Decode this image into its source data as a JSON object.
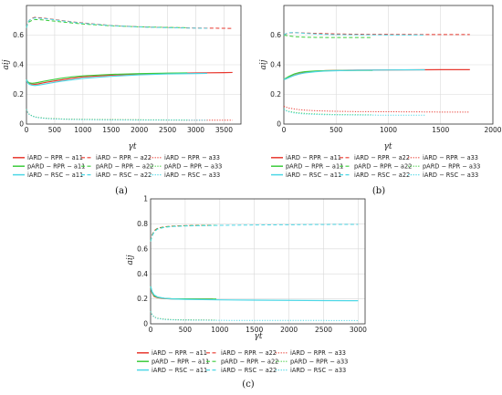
{
  "chart_data": [
    {
      "type": "line",
      "panel_label": "(a)",
      "xlabel": "γt",
      "ylabel": "aij",
      "xlim": [
        0,
        3800
      ],
      "ylim": [
        0,
        0.8
      ],
      "xticks": [
        0,
        500,
        1000,
        1500,
        2000,
        2500,
        3000,
        3500
      ],
      "yticks": [
        0,
        0.2,
        0.4,
        0.6
      ],
      "grid": true,
      "legend_position": "below",
      "series": [
        {
          "name": "iARD − RPR − a11",
          "color": "#e8382f",
          "dash": "solid",
          "x": [
            0,
            20,
            50,
            100,
            150,
            200,
            300,
            400,
            600,
            800,
            1000,
            1500,
            2000,
            2500,
            3000,
            3500,
            3650
          ],
          "y": [
            0.3,
            0.285,
            0.275,
            0.27,
            0.268,
            0.27,
            0.278,
            0.285,
            0.297,
            0.308,
            0.318,
            0.33,
            0.337,
            0.342,
            0.345,
            0.347,
            0.348
          ]
        },
        {
          "name": "iARD − RPR − a22",
          "color": "#e8382f",
          "dash": "dashed",
          "x": [
            0,
            20,
            50,
            100,
            150,
            200,
            300,
            400,
            600,
            800,
            1000,
            1500,
            2000,
            2500,
            3000,
            3500,
            3650
          ],
          "y": [
            0.65,
            0.68,
            0.7,
            0.715,
            0.72,
            0.718,
            0.715,
            0.71,
            0.7,
            0.69,
            0.682,
            0.665,
            0.656,
            0.651,
            0.648,
            0.646,
            0.645
          ]
        },
        {
          "name": "iARD − RPR − a33",
          "color": "#e8382f",
          "dash": "dotted",
          "x": [
            0,
            20,
            50,
            100,
            150,
            200,
            300,
            400,
            600,
            800,
            1000,
            1500,
            2000,
            2500,
            3000,
            3500,
            3650
          ],
          "y": [
            0.1,
            0.08,
            0.065,
            0.055,
            0.048,
            0.044,
            0.04,
            0.037,
            0.034,
            0.032,
            0.031,
            0.029,
            0.028,
            0.027,
            0.026,
            0.026,
            0.026
          ]
        },
        {
          "name": "pARD − RPR − a11",
          "color": "#3ccc3c",
          "dash": "solid",
          "x": [
            0,
            20,
            50,
            100,
            150,
            200,
            300,
            400,
            600,
            800,
            1000,
            1500,
            2000,
            2500,
            2850
          ],
          "y": [
            0.3,
            0.285,
            0.278,
            0.275,
            0.277,
            0.28,
            0.288,
            0.295,
            0.308,
            0.318,
            0.325,
            0.335,
            0.34,
            0.343,
            0.345
          ]
        },
        {
          "name": "pARD − RPR − a22",
          "color": "#3ccc3c",
          "dash": "dashed",
          "x": [
            0,
            20,
            50,
            100,
            150,
            200,
            300,
            400,
            600,
            800,
            1000,
            1500,
            2000,
            2500,
            2850
          ],
          "y": [
            0.65,
            0.675,
            0.69,
            0.7,
            0.705,
            0.705,
            0.702,
            0.698,
            0.69,
            0.682,
            0.675,
            0.663,
            0.656,
            0.652,
            0.65
          ]
        },
        {
          "name": "pARD − RPR − a33",
          "color": "#3ccc3c",
          "dash": "dotted",
          "x": [
            0,
            20,
            50,
            100,
            150,
            200,
            300,
            400,
            600,
            800,
            1000,
            1500,
            2000,
            2500,
            2850
          ],
          "y": [
            0.1,
            0.08,
            0.066,
            0.056,
            0.049,
            0.045,
            0.041,
            0.038,
            0.035,
            0.033,
            0.032,
            0.03,
            0.029,
            0.028,
            0.028
          ]
        },
        {
          "name": "iARD − RSC − a11",
          "color": "#4dd7e6",
          "dash": "solid",
          "x": [
            0,
            20,
            50,
            100,
            150,
            200,
            300,
            400,
            600,
            800,
            1000,
            1500,
            2000,
            2500,
            3000,
            3200
          ],
          "y": [
            0.3,
            0.28,
            0.268,
            0.262,
            0.26,
            0.262,
            0.268,
            0.275,
            0.288,
            0.298,
            0.308,
            0.322,
            0.332,
            0.338,
            0.341,
            0.342
          ]
        },
        {
          "name": "iARD − RSC − a22",
          "color": "#4dd7e6",
          "dash": "dashed",
          "x": [
            0,
            20,
            50,
            100,
            150,
            200,
            300,
            400,
            600,
            800,
            1000,
            1500,
            2000,
            2500,
            3000,
            3200
          ],
          "y": [
            0.65,
            0.68,
            0.7,
            0.712,
            0.716,
            0.715,
            0.712,
            0.708,
            0.698,
            0.688,
            0.68,
            0.664,
            0.655,
            0.65,
            0.647,
            0.646
          ]
        },
        {
          "name": "iARD − RSC − a33",
          "color": "#4dd7e6",
          "dash": "dotted",
          "x": [
            0,
            20,
            50,
            100,
            150,
            200,
            300,
            400,
            600,
            800,
            1000,
            1500,
            2000,
            2500,
            3000,
            3200
          ],
          "y": [
            0.1,
            0.08,
            0.064,
            0.054,
            0.047,
            0.043,
            0.039,
            0.036,
            0.033,
            0.031,
            0.03,
            0.028,
            0.027,
            0.027,
            0.026,
            0.026
          ]
        }
      ]
    },
    {
      "type": "line",
      "panel_label": "(b)",
      "xlabel": "γt",
      "ylabel": "aij",
      "xlim": [
        0,
        2000
      ],
      "ylim": [
        0,
        0.8
      ],
      "xticks": [
        0,
        500,
        1000,
        1500,
        2000
      ],
      "yticks": [
        0,
        0.2,
        0.4,
        0.6
      ],
      "grid": true,
      "legend_position": "below",
      "series": [
        {
          "name": "iARD − RPR − a11",
          "color": "#e8382f",
          "dash": "solid",
          "x": [
            0,
            20,
            50,
            100,
            150,
            200,
            300,
            400,
            500,
            700,
            1000,
            1300,
            1500,
            1780
          ],
          "y": [
            0.3,
            0.305,
            0.315,
            0.33,
            0.34,
            0.348,
            0.356,
            0.36,
            0.362,
            0.364,
            0.365,
            0.366,
            0.367,
            0.367
          ]
        },
        {
          "name": "iARD − RPR − a22",
          "color": "#e8382f",
          "dash": "dashed",
          "x": [
            0,
            20,
            50,
            100,
            150,
            200,
            300,
            400,
            500,
            700,
            1000,
            1300,
            1500,
            1780
          ],
          "y": [
            0.6,
            0.608,
            0.615,
            0.617,
            0.616,
            0.614,
            0.612,
            0.61,
            0.608,
            0.606,
            0.605,
            0.604,
            0.604,
            0.604
          ]
        },
        {
          "name": "iARD − RPR − a33",
          "color": "#e8382f",
          "dash": "dotted",
          "x": [
            0,
            20,
            50,
            100,
            150,
            200,
            300,
            400,
            500,
            700,
            1000,
            1300,
            1500,
            1780
          ],
          "y": [
            0.12,
            0.114,
            0.108,
            0.102,
            0.097,
            0.094,
            0.09,
            0.088,
            0.086,
            0.084,
            0.083,
            0.082,
            0.081,
            0.081
          ]
        },
        {
          "name": "pARD − RPR − a11",
          "color": "#3ccc3c",
          "dash": "solid",
          "x": [
            0,
            20,
            50,
            100,
            150,
            200,
            300,
            400,
            500,
            700,
            850
          ],
          "y": [
            0.3,
            0.31,
            0.322,
            0.338,
            0.348,
            0.353,
            0.358,
            0.36,
            0.361,
            0.362,
            0.362
          ]
        },
        {
          "name": "pARD − RPR − a22",
          "color": "#3ccc3c",
          "dash": "dashed",
          "x": [
            0,
            20,
            50,
            100,
            150,
            200,
            300,
            400,
            500,
            700,
            850
          ],
          "y": [
            0.6,
            0.598,
            0.594,
            0.59,
            0.588,
            0.586,
            0.585,
            0.584,
            0.584,
            0.584,
            0.584
          ]
        },
        {
          "name": "pARD − RPR − a33",
          "color": "#3ccc3c",
          "dash": "dotted",
          "x": [
            0,
            20,
            50,
            100,
            150,
            200,
            300,
            400,
            500,
            700,
            850
          ],
          "y": [
            0.1,
            0.092,
            0.085,
            0.079,
            0.075,
            0.072,
            0.068,
            0.066,
            0.064,
            0.063,
            0.062
          ]
        },
        {
          "name": "iARD − RSC − a11",
          "color": "#4dd7e6",
          "dash": "solid",
          "x": [
            0,
            20,
            50,
            100,
            150,
            200,
            300,
            400,
            500,
            700,
            1000,
            1350
          ],
          "y": [
            0.3,
            0.305,
            0.314,
            0.328,
            0.338,
            0.345,
            0.353,
            0.358,
            0.36,
            0.363,
            0.365,
            0.366
          ]
        },
        {
          "name": "iARD − RSC − a22",
          "color": "#4dd7e6",
          "dash": "dashed",
          "x": [
            0,
            20,
            50,
            100,
            150,
            200,
            300,
            400,
            500,
            700,
            1000,
            1350
          ],
          "y": [
            0.6,
            0.61,
            0.616,
            0.617,
            0.615,
            0.612,
            0.608,
            0.605,
            0.603,
            0.602,
            0.601,
            0.601
          ]
        },
        {
          "name": "iARD − RSC − a33",
          "color": "#4dd7e6",
          "dash": "dotted",
          "x": [
            0,
            20,
            50,
            100,
            150,
            200,
            300,
            400,
            500,
            700,
            1000,
            1350
          ],
          "y": [
            0.1,
            0.09,
            0.082,
            0.075,
            0.071,
            0.068,
            0.065,
            0.063,
            0.062,
            0.061,
            0.06,
            0.06
          ]
        }
      ]
    },
    {
      "type": "line",
      "panel_label": "(c)",
      "xlabel": "γt",
      "ylabel": "aij",
      "xlim": [
        0,
        3100
      ],
      "ylim": [
        0,
        1.0
      ],
      "xticks": [
        0,
        500,
        1000,
        1500,
        2000,
        2500,
        3000
      ],
      "yticks": [
        0,
        0.2,
        0.4,
        0.6,
        0.8,
        1
      ],
      "grid": true,
      "legend_position": "below",
      "series": [
        {
          "name": "iARD − RPR − a11",
          "color": "#e8382f",
          "dash": "solid",
          "x": [
            0,
            20,
            50,
            100,
            200,
            300,
            500,
            700,
            900
          ],
          "y": [
            0.3,
            0.25,
            0.22,
            0.21,
            0.202,
            0.2,
            0.199,
            0.198,
            0.198
          ]
        },
        {
          "name": "iARD − RPR − a22",
          "color": "#e8382f",
          "dash": "dashed",
          "x": [
            0,
            20,
            50,
            100,
            200,
            300,
            500,
            700,
            900
          ],
          "y": [
            0.66,
            0.71,
            0.745,
            0.765,
            0.777,
            0.782,
            0.786,
            0.788,
            0.789
          ]
        },
        {
          "name": "iARD − RPR − a33",
          "color": "#e8382f",
          "dash": "dotted",
          "x": [
            0,
            20,
            50,
            100,
            200,
            300,
            500,
            700,
            900
          ],
          "y": [
            0.1,
            0.075,
            0.055,
            0.044,
            0.036,
            0.033,
            0.031,
            0.03,
            0.03
          ]
        },
        {
          "name": "pARD − RPR − a11",
          "color": "#3ccc3c",
          "dash": "solid",
          "x": [
            0,
            20,
            50,
            100,
            200,
            300,
            500,
            700,
            900,
            950
          ],
          "y": [
            0.3,
            0.255,
            0.225,
            0.212,
            0.204,
            0.201,
            0.2,
            0.199,
            0.198,
            0.198
          ]
        },
        {
          "name": "pARD − RPR − a22",
          "color": "#3ccc3c",
          "dash": "dashed",
          "x": [
            0,
            20,
            50,
            100,
            200,
            300,
            500,
            700,
            900,
            950
          ],
          "y": [
            0.66,
            0.705,
            0.74,
            0.762,
            0.775,
            0.78,
            0.785,
            0.787,
            0.788,
            0.788
          ]
        },
        {
          "name": "pARD − RPR − a33",
          "color": "#3ccc3c",
          "dash": "dotted",
          "x": [
            0,
            20,
            50,
            100,
            200,
            300,
            500,
            700,
            900,
            950
          ],
          "y": [
            0.1,
            0.076,
            0.056,
            0.045,
            0.037,
            0.034,
            0.032,
            0.031,
            0.03,
            0.03
          ]
        },
        {
          "name": "iARD − RSC − a11",
          "color": "#4dd7e6",
          "dash": "solid",
          "x": [
            0,
            20,
            50,
            100,
            200,
            300,
            500,
            1000,
            1500,
            2000,
            2500,
            3000
          ],
          "y": [
            0.3,
            0.26,
            0.232,
            0.215,
            0.205,
            0.2,
            0.196,
            0.192,
            0.19,
            0.188,
            0.186,
            0.185
          ]
        },
        {
          "name": "iARD − RSC − a22",
          "color": "#4dd7e6",
          "dash": "dashed",
          "x": [
            0,
            20,
            50,
            100,
            200,
            300,
            500,
            1000,
            1500,
            2000,
            2500,
            3000
          ],
          "y": [
            0.66,
            0.7,
            0.735,
            0.758,
            0.772,
            0.778,
            0.783,
            0.788,
            0.791,
            0.793,
            0.795,
            0.796
          ]
        },
        {
          "name": "iARD − RSC − a33",
          "color": "#4dd7e6",
          "dash": "dotted",
          "x": [
            0,
            20,
            50,
            100,
            200,
            300,
            500,
            1000,
            1500,
            2000,
            2500,
            3000
          ],
          "y": [
            0.1,
            0.074,
            0.054,
            0.043,
            0.035,
            0.032,
            0.03,
            0.028,
            0.027,
            0.027,
            0.027,
            0.026
          ]
        }
      ]
    }
  ]
}
